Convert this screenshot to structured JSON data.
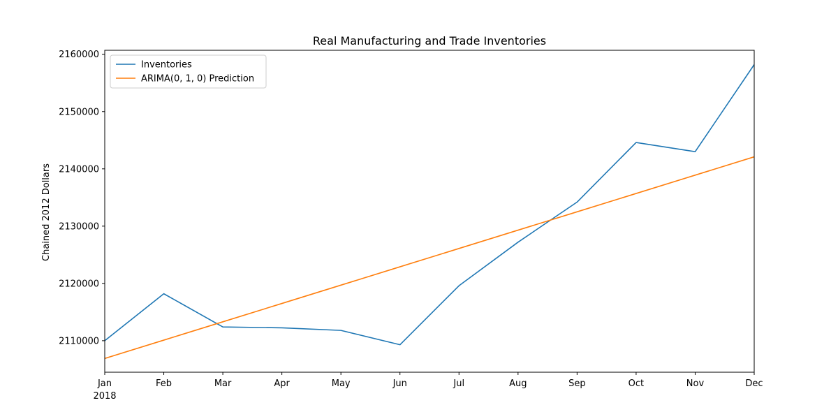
{
  "chart_data": {
    "type": "line",
    "title": "Real Manufacturing and Trade Inventories",
    "xlabel": "",
    "ylabel": "Chained 2012 Dollars",
    "x": [
      "Jan",
      "Feb",
      "Mar",
      "Apr",
      "May",
      "Jun",
      "Jul",
      "Aug",
      "Sep",
      "Oct",
      "Nov",
      "Dec"
    ],
    "x_year_label": "2018",
    "ylim": [
      2104500,
      2160700
    ],
    "yticks": [
      2110000,
      2120000,
      2130000,
      2140000,
      2150000,
      2160000
    ],
    "grid": false,
    "legend_position": "top-left",
    "series": [
      {
        "name": "Inventories",
        "color": "#1f77b4",
        "values": [
          2110000,
          2118200,
          2112400,
          2112250,
          2111800,
          2109300,
          2119600,
          2127200,
          2134200,
          2144600,
          2143000,
          2158200
        ]
      },
      {
        "name": "ARIMA(0, 1, 0) Prediction",
        "color": "#ff7f0e",
        "values": [
          2106900,
          2110100,
          2113300,
          2116500,
          2119700,
          2122900,
          2126100,
          2129300,
          2132500,
          2135700,
          2138900,
          2142100
        ]
      }
    ]
  }
}
